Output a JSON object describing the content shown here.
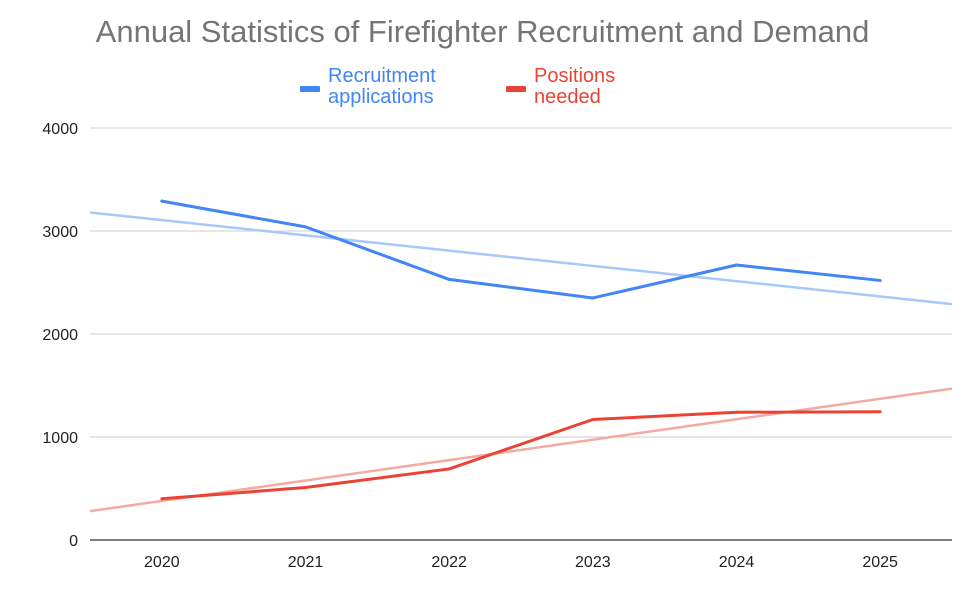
{
  "chart_data": {
    "type": "line",
    "title": "Annual Statistics of Firefighter Recruitment and Demand",
    "xlabel": "",
    "ylabel": "",
    "categories": [
      "2020",
      "2021",
      "2022",
      "2023",
      "2024",
      "2025"
    ],
    "ylim": [
      0,
      4000
    ],
    "yticks": [
      "0",
      "1000",
      "2000",
      "3000",
      "4000"
    ],
    "grid": true,
    "legend_position": "top",
    "series": [
      {
        "name": "Recruitment applications",
        "label_lines": [
          "Recruitment",
          "applications"
        ],
        "color": "#4285f4",
        "trend_color": "#a8c7fa",
        "values": [
          3290,
          3040,
          2530,
          2350,
          2670,
          2520
        ],
        "trendline": {
          "start": 3180,
          "end": 2290
        }
      },
      {
        "name": "Positions needed",
        "label_lines": [
          "Positions",
          "needed"
        ],
        "color": "#ea4335",
        "trend_color": "#f4a9a2",
        "values": [
          400,
          510,
          690,
          1170,
          1240,
          1245
        ],
        "trendline": {
          "start": 280,
          "end": 1470
        }
      }
    ]
  }
}
